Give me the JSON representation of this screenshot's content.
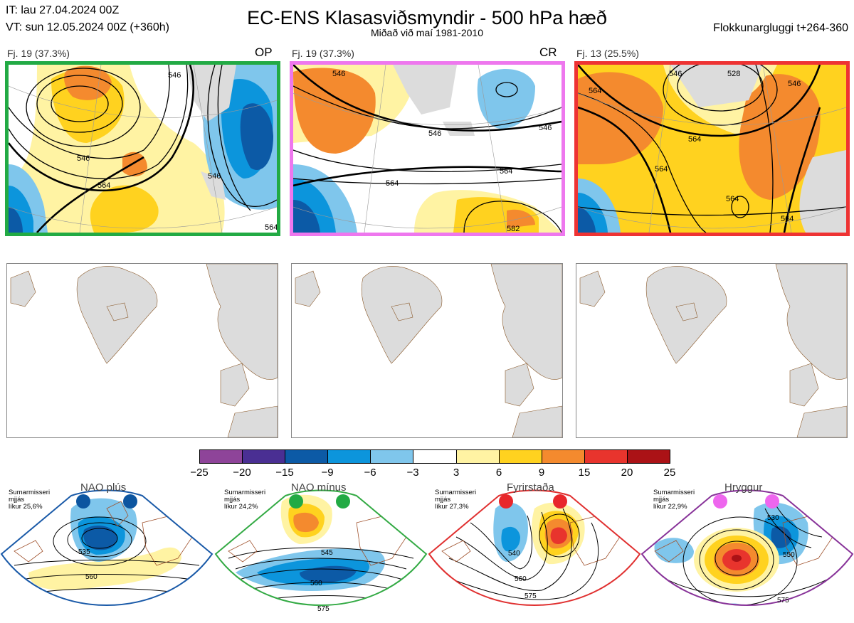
{
  "header": {
    "init_time": "IT: lau 27.04.2024 00Z",
    "valid_time": "VT: sun 12.05.2024 00Z  (+360h)",
    "title": "EC-ENS Klasasviðsmyndir - 500 hPa hæð",
    "subtitle": "Miðað við maí 1981-2010",
    "window": "Flokkunargluggi t+264-360"
  },
  "clusters": [
    {
      "label": "Fj. 19 (37.3%)",
      "tag": "OP",
      "frame_color": "#22aa44",
      "contour_labels": [
        "546",
        "546",
        "564",
        "546",
        "564"
      ]
    },
    {
      "label": "Fj. 19 (37.3%)",
      "tag": "CR",
      "frame_color": "#ee77ee",
      "contour_labels": [
        "546",
        "546",
        "546",
        "564",
        "564",
        "582"
      ]
    },
    {
      "label": "Fj. 13 (25.5%)",
      "tag": "",
      "frame_color": "#ee3333",
      "contour_labels": [
        "564",
        "546",
        "528",
        "564",
        "564",
        "564",
        "564",
        "546"
      ]
    }
  ],
  "colorbar": {
    "colors": [
      "#8e4499",
      "#4a2f93",
      "#0c5aa6",
      "#0c95dc",
      "#7fc6ec",
      "#ffffff",
      "#fff3a3",
      "#ffd21f",
      "#f48a2e",
      "#e8342d",
      "#ab1216"
    ],
    "ticks": [
      "−25",
      "−20",
      "−15",
      "−9",
      "−6",
      "−3",
      "3",
      "6",
      "9",
      "15",
      "20",
      "25"
    ]
  },
  "regimes": [
    {
      "name": "NAO plús",
      "note": [
        "Sumarmisseri",
        "mjjás",
        "líkur 25,6%"
      ],
      "dot_color": "#0c55a0",
      "frame_color": "#1a5aa8",
      "contour_labels": [
        "535",
        "560"
      ]
    },
    {
      "name": "NAO mínus",
      "note": [
        "Sumarmisseri",
        "mjjás",
        "líkur 24,2%"
      ],
      "dot_color": "#22aa44",
      "frame_color": "#33aa44",
      "contour_labels": [
        "545",
        "560",
        "575"
      ]
    },
    {
      "name": "Fyrirstaða",
      "note": [
        "Sumarmisseri",
        "mjjás",
        "líkur 27,3%"
      ],
      "dot_color": "#e8262a",
      "frame_color": "#e03030",
      "contour_labels": [
        "540",
        "560",
        "575"
      ]
    },
    {
      "name": "Hryggur",
      "note": [
        "Sumarmisseri",
        "mjjás",
        "líkur 22,9%"
      ],
      "dot_color": "#ee66ee",
      "frame_color": "#883399",
      "contour_labels": [
        "530",
        "550",
        "575"
      ]
    }
  ]
}
